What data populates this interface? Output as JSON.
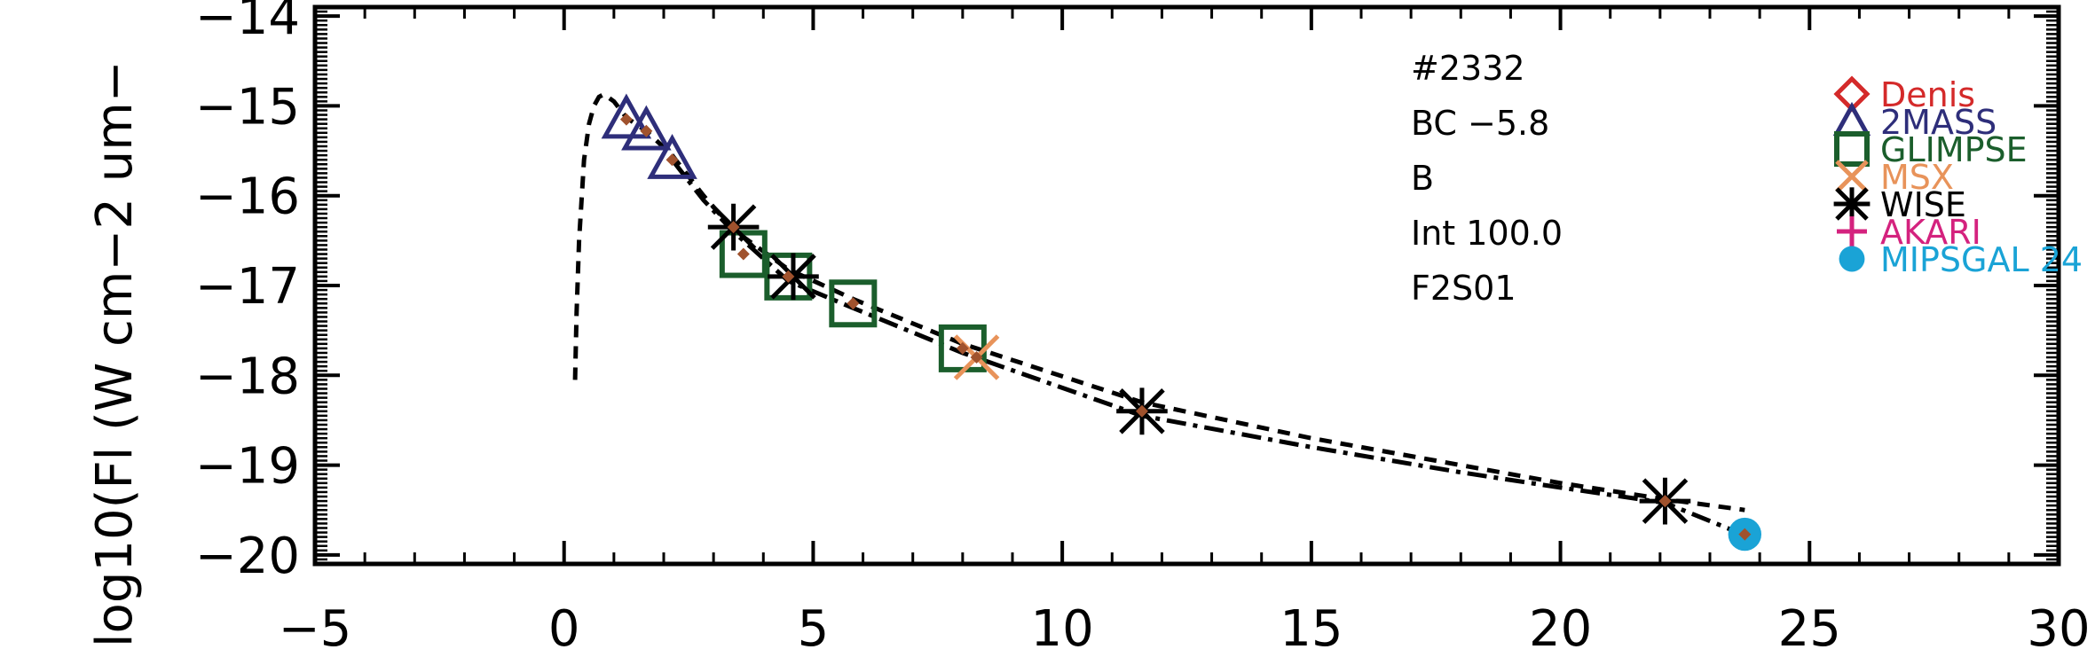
{
  "chart_data": {
    "type": "scatter",
    "title": "",
    "xlabel": "",
    "ylabel": "log10(Fl (W cm−2 um−",
    "xlim": [
      -5,
      30
    ],
    "ylim": [
      -20.1,
      -13.9
    ],
    "x_major_ticks": [
      -5,
      0,
      5,
      10,
      15,
      20,
      25,
      30
    ],
    "x_tick_labels": [
      "−5",
      "0",
      "5",
      "10",
      "15",
      "20",
      "25",
      "30"
    ],
    "y_major_ticks": [
      -20,
      -19,
      -18,
      -17,
      -16,
      -15,
      -14
    ],
    "y_tick_labels": [
      "−20",
      "−19",
      "−18",
      "−17",
      "−16",
      "−15",
      "−14"
    ],
    "grid": false,
    "legend_position": "top-right",
    "annotations": [
      "#2332",
      "BC −5.8",
      "B",
      "Int 100.0",
      "F2S01"
    ],
    "legend": [
      {
        "name": "Denis",
        "color": "#d42a2a",
        "marker": "diamond"
      },
      {
        "name": "2MASS",
        "color": "#2e2e7a",
        "marker": "triangle"
      },
      {
        "name": "GLIMPSE",
        "color": "#1b5e2c",
        "marker": "square"
      },
      {
        "name": "MSX",
        "color": "#e8935a",
        "marker": "x"
      },
      {
        "name": "WISE",
        "color": "#000000",
        "marker": "asterisk"
      },
      {
        "name": "AKARI",
        "color": "#d4227e",
        "marker": "plus"
      },
      {
        "name": "MIPSGAL 24",
        "color": "#1aa3d6",
        "marker": "circle"
      }
    ],
    "series": [
      {
        "name": "2MASS",
        "marker": "triangle",
        "color": "#2e2e7a",
        "x": [
          1.25,
          1.65,
          2.17
        ],
        "y": [
          -15.15,
          -15.28,
          -15.6
        ]
      },
      {
        "name": "GLIMPSE",
        "marker": "square",
        "color": "#1b5e2c",
        "x": [
          3.6,
          4.5,
          5.8,
          8.0
        ],
        "y": [
          -16.65,
          -16.9,
          -17.2,
          -17.7
        ]
      },
      {
        "name": "MSX",
        "marker": "x",
        "color": "#e8935a",
        "x": [
          8.28
        ],
        "y": [
          -17.8
        ]
      },
      {
        "name": "WISE",
        "marker": "asterisk",
        "color": "#000000",
        "x": [
          3.4,
          4.6,
          11.6,
          22.1
        ],
        "y": [
          -16.35,
          -16.9,
          -18.4,
          -19.4
        ]
      },
      {
        "name": "MIPSGAL 24",
        "marker": "circle",
        "color": "#1aa3d6",
        "x": [
          23.7
        ],
        "y": [
          -19.77
        ]
      },
      {
        "name": "model-points",
        "marker": "small-diamond",
        "color": "#a0522d",
        "x": [
          1.25,
          1.65,
          2.17,
          3.4,
          3.6,
          4.5,
          5.8,
          8.0,
          8.28,
          11.6,
          22.1,
          23.7
        ],
        "y": [
          -15.15,
          -15.28,
          -15.6,
          -16.35,
          -16.65,
          -16.9,
          -17.2,
          -17.7,
          -17.8,
          -18.4,
          -19.4,
          -19.77
        ]
      }
    ],
    "curves": [
      {
        "style": "dashed",
        "color": "#000000",
        "x": [
          0.22,
          0.25,
          0.3,
          0.4,
          0.5,
          0.6,
          0.7,
          0.8,
          1.0,
          1.25,
          1.65,
          2.17,
          2.8,
          3.4,
          4.5,
          5.8,
          8.0,
          11.6,
          15.0,
          18.0,
          20.0,
          22.1,
          23.7
        ],
        "y": [
          -18.05,
          -17.3,
          -16.5,
          -15.6,
          -15.2,
          -15.0,
          -14.9,
          -14.87,
          -14.95,
          -15.13,
          -15.28,
          -15.55,
          -16.0,
          -16.38,
          -16.82,
          -17.15,
          -17.65,
          -18.3,
          -18.7,
          -19.0,
          -19.2,
          -19.38,
          -19.5
        ]
      },
      {
        "style": "dashdot",
        "color": "#000000",
        "x": [
          2.17,
          2.8,
          3.4,
          4.5,
          5.8,
          8.0,
          11.6,
          15.0,
          18.0,
          20.0,
          22.1,
          23.7
        ],
        "y": [
          -15.6,
          -16.05,
          -16.4,
          -16.95,
          -17.25,
          -17.75,
          -18.45,
          -18.8,
          -19.08,
          -19.25,
          -19.42,
          -19.78
        ]
      }
    ]
  }
}
